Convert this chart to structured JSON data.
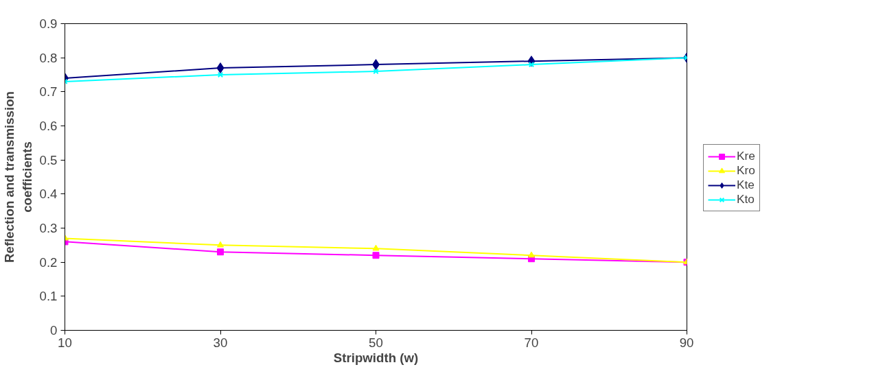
{
  "chart_data": {
    "type": "line",
    "xlabel": "Stripwidth (w)",
    "ylabel": "Reflection and transmission\ncoefficients",
    "x": [
      10,
      30,
      50,
      70,
      90
    ],
    "xlim": [
      10,
      90
    ],
    "xticks": [
      10,
      30,
      50,
      70,
      90
    ],
    "ylim": [
      0,
      0.9
    ],
    "yticks": [
      0,
      0.1,
      0.2,
      0.3,
      0.4,
      0.5,
      0.6,
      0.7,
      0.8,
      0.9
    ],
    "grid": false,
    "legend": "right",
    "line_style": "solid",
    "series": [
      {
        "name": "Kre",
        "color": "#ff00ff",
        "marker": "square",
        "values": [
          0.26,
          0.23,
          0.22,
          0.21,
          0.2
        ]
      },
      {
        "name": "Kro",
        "color": "#ffff00",
        "marker": "triangle",
        "values": [
          0.27,
          0.25,
          0.24,
          0.22,
          0.2
        ]
      },
      {
        "name": "Kte",
        "color": "#000080",
        "marker": "diamond",
        "values": [
          0.74,
          0.77,
          0.78,
          0.79,
          0.8
        ]
      },
      {
        "name": "Kto",
        "color": "#00ffff",
        "marker": "cross",
        "values": [
          0.73,
          0.75,
          0.76,
          0.78,
          0.8
        ]
      }
    ]
  }
}
